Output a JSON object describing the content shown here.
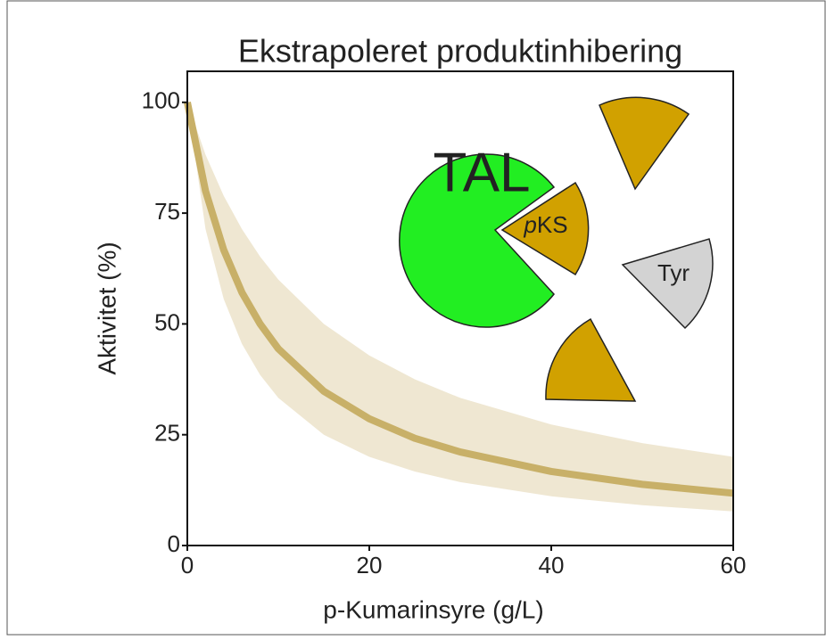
{
  "chart_data": {
    "type": "line",
    "title": "Ekstrapoleret produktinhibering",
    "x_label": "p-Kumarinsyre (g/L)",
    "y_label": "Aktivitet (%)",
    "x": [
      0,
      2,
      4,
      6,
      8,
      10,
      15,
      20,
      25,
      30,
      40,
      50,
      60
    ],
    "line": {
      "color": "#c8b068",
      "values": [
        100,
        80,
        66.7,
        57.1,
        50,
        44.4,
        34.8,
        28.6,
        24.2,
        21.1,
        16.7,
        13.8,
        11.8
      ]
    },
    "band": {
      "color": "#efe7d2",
      "upper": [
        100,
        88.2,
        78.9,
        71.4,
        65.2,
        60,
        50,
        42.9,
        37.5,
        33.3,
        27.3,
        23.1,
        20
      ],
      "lower": [
        100,
        71.4,
        55.6,
        45.5,
        38.5,
        33.3,
        25,
        20,
        16.7,
        14.3,
        11.1,
        9.1,
        7.7
      ]
    },
    "xlim": [
      0,
      60
    ],
    "xticks": [
      0,
      20,
      40,
      60
    ],
    "ylim": [
      0,
      107
    ],
    "yticks": [
      0,
      25,
      50,
      75,
      100
    ],
    "illustration": {
      "tal": "TAL",
      "pks_prefix": "p",
      "pks": "KS",
      "tyr": "Tyr"
    }
  }
}
